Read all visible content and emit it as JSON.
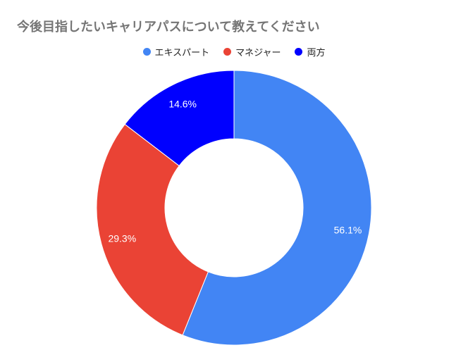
{
  "chart_data": {
    "type": "pie",
    "title": "今後目指したいキャリアパスについて教えてください",
    "donut": true,
    "legend_position": "top",
    "categories": [
      "エキスパート",
      "マネジャー",
      "両方"
    ],
    "values": [
      56.1,
      29.3,
      14.6
    ],
    "labels": [
      "56.1%",
      "29.3%",
      "14.6%"
    ],
    "colors": [
      "#4285F4",
      "#EA4335",
      "#0000FF"
    ]
  }
}
